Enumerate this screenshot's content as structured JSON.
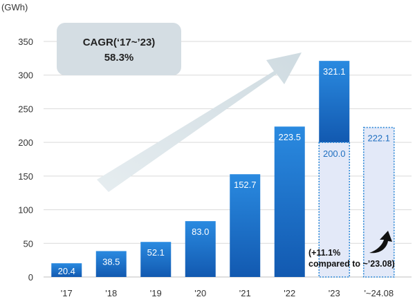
{
  "chart_data": {
    "type": "bar",
    "unit_label": "(GWh)",
    "ylim": [
      0,
      350
    ],
    "yticks": [
      0,
      50,
      100,
      150,
      200,
      250,
      300,
      350
    ],
    "grid": true,
    "categories": [
      "'17",
      "'18",
      "'19",
      "'20",
      "'21",
      "'22",
      "'23",
      "'~24.08"
    ],
    "values": [
      20.4,
      38.5,
      52.1,
      83.0,
      152.7,
      223.5,
      321.1,
      222.1
    ],
    "value_labels": [
      "20.4",
      "38.5",
      "52.1",
      "83.0",
      "152.7",
      "223.5",
      "321.1",
      "222.1"
    ],
    "partial_value": {
      "category": "'23",
      "value": 200.0,
      "label": "200.0"
    },
    "cagr": {
      "title": "CAGR(‘17~’23)",
      "value": "58.3%"
    },
    "annotation": {
      "line1": "(+11.1%",
      "line2": "compared to ~’23.08)"
    },
    "colors": {
      "bar_top": "#2a8ae0",
      "bar_bottom": "#1259b0",
      "dashed_fill": "#e3e9f8",
      "dashed_stroke": "#2a86d6",
      "grid": "#d9d9d9",
      "cagr_box": "#d4dde3",
      "arrow": "#dde6ea"
    }
  }
}
